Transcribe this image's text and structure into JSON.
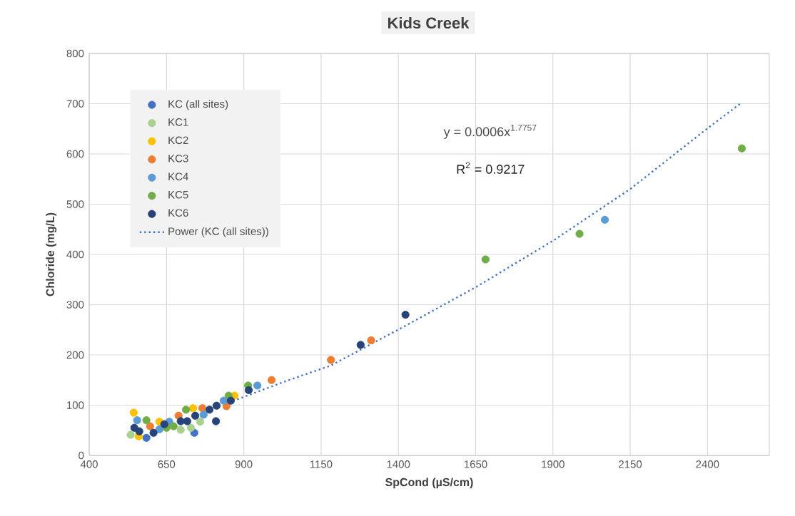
{
  "chart_data": {
    "type": "scatter",
    "title": "Kids Creek",
    "xlabel": "SpCond (µS/cm)",
    "ylabel": "Chloride (mg/L)",
    "xlim": [
      400,
      2600
    ],
    "ylim": [
      0,
      800
    ],
    "xticks": [
      400,
      650,
      900,
      1150,
      1400,
      1650,
      1900,
      2150,
      2400
    ],
    "yticks": [
      0,
      100,
      200,
      300,
      400,
      500,
      600,
      700,
      800
    ],
    "grid": true,
    "legend": "top left",
    "marker": "circle",
    "annotations": [
      "y = 0.0006x$^{1.7757}$",
      "R$^{2}$ = 0.9217"
    ],
    "series": [
      {
        "name": "KC (all sites)",
        "color": "#4472c4",
        "x": [
          585,
          740
        ],
        "values": [
          35,
          45
        ]
      },
      {
        "name": "KC1",
        "color": "#a9d18e",
        "x": [
          534,
          604,
          666,
          696,
          729,
          759
        ],
        "values": [
          41,
          null,
          null,
          51,
          55,
          67
        ]
      },
      {
        "name": "KC2",
        "color": "#ffc000",
        "x": [
          544,
          560,
          627,
          736,
          870
        ],
        "values": [
          85,
          38,
          67,
          94,
          119
        ]
      },
      {
        "name": "KC3",
        "color": "#ed7d31",
        "x": [
          597,
          689,
          766,
          844,
          951,
          990,
          1182,
          1312
        ],
        "values": [
          58,
          79,
          94,
          98,
          null,
          150,
          190,
          229
        ]
      },
      {
        "name": "KC4",
        "color": "#5b9bd5",
        "x": [
          555,
          627,
          659,
          770,
          835,
          944,
          2068
        ],
        "values": [
          70,
          52,
          67,
          81,
          109,
          139,
          469
        ]
      },
      {
        "name": "KC5",
        "color": "#70ad47",
        "x": [
          585,
          650,
          673,
          713,
          851,
          914,
          1682,
          1986,
          2511
        ],
        "values": [
          70,
          55,
          58,
          91,
          119,
          139,
          390,
          441,
          611
        ]
      },
      {
        "name": "KC6",
        "color": "#264478",
        "x": [
          546,
          562,
          608,
          643,
          696,
          717,
          743,
          789,
          810,
          812,
          858,
          916,
          1278,
          1423
        ],
        "values": [
          55,
          48,
          45,
          62,
          68,
          68,
          79,
          91,
          68,
          99,
          109,
          130,
          220,
          280
        ]
      },
      {
        "name": "Power (KC (all sites))",
        "type": "line",
        "color": "#4472c4",
        "line_style": "dotted",
        "marker": "none",
        "x": [
          851,
          1037,
          1182,
          1423,
          1651,
          1902,
          2152,
          2400,
          2506
        ],
        "values": [
          105,
          148,
          179,
          258,
          335,
          428,
          531,
          651,
          700
        ]
      }
    ]
  }
}
